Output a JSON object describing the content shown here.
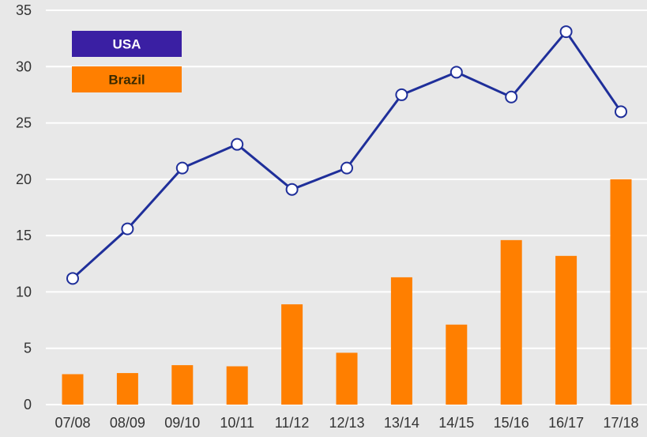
{
  "chart_data": {
    "type": "bar",
    "categories": [
      "07/08",
      "08/09",
      "09/10",
      "10/11",
      "11/12",
      "12/13",
      "13/14",
      "14/15",
      "15/16",
      "16/17",
      "17/18"
    ],
    "series": [
      {
        "name": "USA",
        "type": "line",
        "color": "#1f2f9a",
        "values": [
          11.2,
          15.6,
          21.0,
          23.1,
          19.1,
          21.0,
          27.5,
          29.5,
          27.3,
          33.1,
          26.0
        ]
      },
      {
        "name": "Brazil",
        "type": "bar",
        "color": "#ff7f00",
        "values": [
          2.7,
          2.8,
          3.5,
          3.4,
          8.9,
          4.6,
          11.3,
          7.1,
          14.6,
          13.2,
          20.0
        ]
      }
    ],
    "ylim": [
      0,
      35
    ],
    "yticks": [
      0,
      5,
      10,
      15,
      20,
      25,
      30,
      35
    ],
    "grid": true,
    "legend_position": "top-left",
    "legend": [
      {
        "label": "USA",
        "color": "#3a1fa3"
      },
      {
        "label": "Brazil",
        "color": "#ff7f00"
      }
    ],
    "title": "",
    "xlabel": "",
    "ylabel": ""
  }
}
